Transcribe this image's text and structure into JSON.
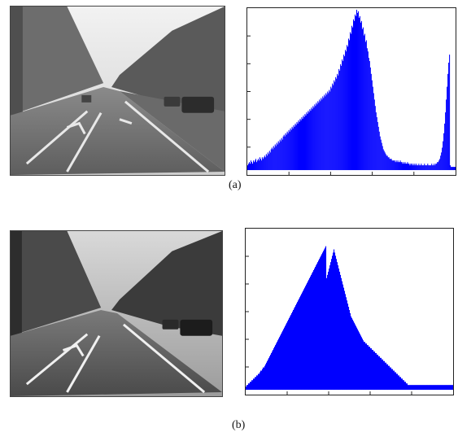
{
  "figure": {
    "panel_a": {
      "caption": "(a)",
      "image": {
        "subject": "street-scene-photo",
        "tone": "grayscale"
      }
    },
    "panel_b": {
      "caption": "(b)",
      "image": {
        "subject": "street-scene-photo",
        "tone": "grayscale"
      }
    }
  },
  "colors": {
    "bar": "#0000ff",
    "axis": "#222222"
  },
  "chart_data": [
    {
      "type": "bar",
      "title": "",
      "xlabel": "",
      "ylabel": "",
      "xlim": [
        0,
        255
      ],
      "ylim": [
        0,
        100
      ],
      "series": [
        {
          "values": [
            3,
            4,
            5,
            4,
            6,
            5,
            4,
            6,
            5,
            6,
            7,
            5,
            6,
            7,
            6,
            8,
            7,
            6,
            8,
            7,
            8,
            9,
            8,
            10,
            9,
            11,
            10,
            12,
            11,
            13,
            14,
            13,
            15,
            14,
            16,
            15,
            17,
            16,
            18,
            17,
            19,
            18,
            20,
            19,
            21,
            22,
            21,
            23,
            22,
            24,
            23,
            25,
            24,
            26,
            25,
            27,
            26,
            28,
            27,
            29,
            28,
            30,
            29,
            31,
            30,
            32,
            31,
            33,
            32,
            34,
            33,
            35,
            34,
            36,
            35,
            37,
            36,
            38,
            37,
            39,
            38,
            40,
            39,
            41,
            40,
            42,
            41,
            43,
            42,
            44,
            43,
            45,
            44,
            46,
            45,
            47,
            46,
            48,
            47,
            49,
            48,
            50,
            49,
            52,
            51,
            54,
            53,
            56,
            55,
            58,
            57,
            60,
            59,
            63,
            62,
            66,
            65,
            69,
            68,
            72,
            71,
            75,
            74,
            78,
            77,
            82,
            81,
            86,
            85,
            90,
            89,
            94,
            93,
            97,
            96,
            100,
            98,
            99,
            95,
            96,
            92,
            93,
            88,
            89,
            84,
            85,
            80,
            81,
            76,
            74,
            70,
            68,
            64,
            60,
            56,
            52,
            48,
            44,
            40,
            36,
            33,
            30,
            27,
            24,
            21,
            19,
            17,
            15,
            13,
            12,
            11,
            10,
            9,
            9,
            8,
            8,
            7,
            7,
            7,
            6,
            6,
            6,
            6,
            5,
            6,
            5,
            6,
            5,
            5,
            6,
            5,
            5,
            4,
            5,
            4,
            5,
            4,
            4,
            5,
            4,
            4,
            3,
            4,
            4,
            3,
            4,
            3,
            4,
            3,
            4,
            3,
            3,
            4,
            3,
            3,
            4,
            3,
            3,
            3,
            4,
            3,
            3,
            3,
            4,
            3,
            3,
            3,
            3,
            4,
            3,
            3,
            4,
            3,
            4,
            4,
            5,
            5,
            6,
            7,
            9,
            11,
            14,
            18,
            23,
            29,
            36,
            44,
            52,
            60,
            67,
            72,
            3,
            2,
            2,
            2,
            2,
            2,
            2
          ]
        }
      ]
    },
    {
      "type": "bar",
      "title": "",
      "xlabel": "",
      "ylabel": "",
      "xlim": [
        0,
        255
      ],
      "ylim": [
        0,
        100
      ],
      "series": [
        {
          "values": [
            2,
            3,
            3,
            4,
            4,
            5,
            5,
            6,
            6,
            7,
            7,
            8,
            8,
            9,
            9,
            10,
            10,
            11,
            12,
            12,
            13,
            14,
            14,
            15,
            16,
            17,
            18,
            19,
            20,
            21,
            22,
            23,
            24,
            25,
            26,
            27,
            28,
            29,
            30,
            31,
            32,
            33,
            34,
            35,
            36,
            37,
            38,
            39,
            40,
            41,
            42,
            43,
            44,
            45,
            46,
            47,
            48,
            49,
            50,
            51,
            52,
            53,
            54,
            55,
            56,
            57,
            58,
            59,
            60,
            61,
            62,
            63,
            64,
            65,
            66,
            67,
            68,
            69,
            70,
            71,
            72,
            73,
            74,
            75,
            76,
            77,
            78,
            79,
            80,
            81,
            82,
            83,
            84,
            85,
            86,
            87,
            88,
            89,
            90,
            70,
            72,
            74,
            76,
            78,
            80,
            82,
            84,
            86,
            88,
            86,
            84,
            82,
            80,
            78,
            76,
            74,
            72,
            70,
            68,
            66,
            64,
            62,
            60,
            58,
            56,
            54,
            52,
            50,
            48,
            46,
            45,
            44,
            43,
            42,
            41,
            40,
            39,
            38,
            37,
            36,
            35,
            34,
            33,
            32,
            31,
            30,
            30,
            29,
            29,
            28,
            28,
            27,
            27,
            26,
            26,
            25,
            25,
            24,
            24,
            23,
            23,
            22,
            22,
            21,
            21,
            20,
            20,
            19,
            19,
            18,
            18,
            17,
            17,
            16,
            16,
            15,
            15,
            14,
            14,
            13,
            13,
            12,
            12,
            11,
            11,
            10,
            10,
            9,
            9,
            8,
            8,
            7,
            7,
            6,
            6,
            5,
            5,
            4,
            4,
            3,
            3,
            3,
            3,
            3,
            3,
            3,
            3,
            3,
            3,
            3,
            3,
            3,
            3,
            3,
            3,
            3,
            3,
            3,
            3,
            3,
            3,
            3,
            3,
            3,
            3,
            3,
            3,
            3,
            3,
            3,
            3,
            3,
            3,
            3,
            3,
            3,
            3,
            3,
            3,
            3,
            3,
            3,
            3,
            3,
            3,
            3,
            3,
            3,
            3,
            3,
            3,
            3,
            3,
            3,
            3
          ]
        }
      ]
    }
  ]
}
